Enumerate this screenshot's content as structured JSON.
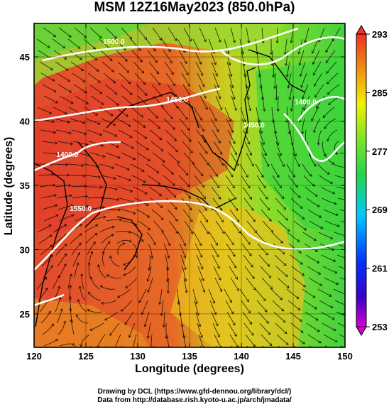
{
  "title": "MSM 12Z16May2023 (850.0hPa)",
  "x_axis": {
    "label": "Longitude (degrees)",
    "min": 120,
    "max": 150,
    "ticks": [
      "120",
      "125",
      "130",
      "135",
      "140",
      "145",
      "150"
    ]
  },
  "y_axis": {
    "label": "Latitude  (degrees)",
    "min": 22.4,
    "max": 47.6,
    "ticks": [
      "25",
      "30",
      "35",
      "40",
      "45"
    ]
  },
  "colorbar": {
    "ticks": [
      "253",
      "261",
      "269",
      "277",
      "285",
      "293"
    ],
    "min": 253,
    "max": 293
  },
  "contour_labels": [
    {
      "text": "1400.0",
      "lon": 123.2,
      "lat": 37.2
    },
    {
      "text": "1450.0",
      "lon": 133.8,
      "lat": 41.5
    },
    {
      "text": "1500.0",
      "lon": 127.7,
      "lat": 46.0
    },
    {
      "text": "1550.0",
      "lon": 124.5,
      "lat": 33.0
    },
    {
      "text": "1450.0",
      "lon": 141.2,
      "lat": 39.5
    },
    {
      "text": "1400.0",
      "lon": 146.2,
      "lat": 41.3
    }
  ],
  "credit": {
    "line1": "Drawing by DCL (https://www.gfd-dennou.org/library/dcl/)",
    "line2": "Data from http://database.rish.kyoto-u.ac.jp/arch/jmadata/"
  },
  "colors": {
    "warm": "#e0452a",
    "mid": "#e7b21e",
    "cool": "#4fd63a"
  }
}
